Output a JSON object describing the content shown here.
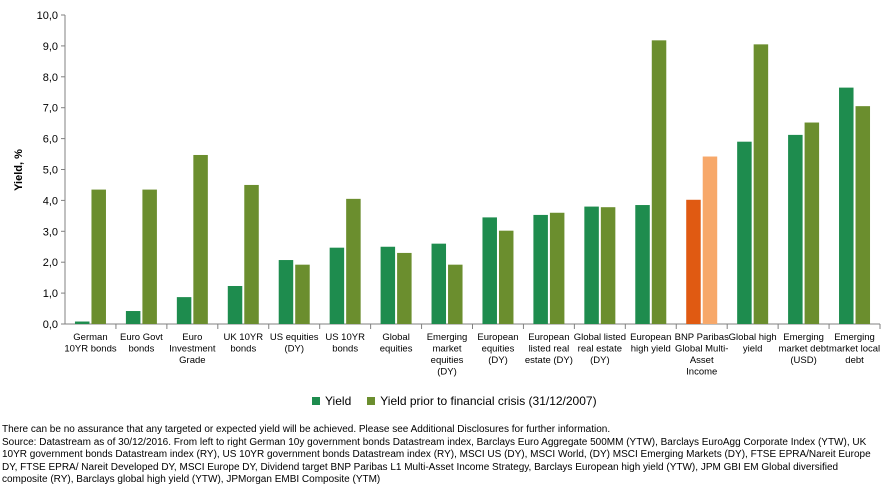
{
  "chart_data": {
    "type": "bar",
    "ylabel": "Yield, %",
    "ylim": [
      0,
      10
    ],
    "yticks": [
      "0,0",
      "1,0",
      "2,0",
      "3,0",
      "4,0",
      "5,0",
      "6,0",
      "7,0",
      "8,0",
      "9,0",
      "10,0"
    ],
    "categories": [
      [
        "German",
        "10YR bonds"
      ],
      [
        "Euro Govt",
        "bonds"
      ],
      [
        "Euro",
        "Investment",
        "Grade"
      ],
      [
        "UK 10YR",
        "bonds"
      ],
      [
        "US equities",
        "(DY)"
      ],
      [
        "US 10YR",
        "bonds"
      ],
      [
        "Global",
        "equities"
      ],
      [
        "Emerging",
        "market",
        "equities",
        "(DY)"
      ],
      [
        "European",
        "equities",
        "(DY)"
      ],
      [
        "European",
        "listed real",
        "estate (DY)"
      ],
      [
        "Global listed",
        "real estate",
        "(DY)"
      ],
      [
        "European",
        "high yield"
      ],
      [
        "BNP Paribas",
        "Global Multi-",
        "Asset",
        "Income"
      ],
      [
        "Global high",
        "yield"
      ],
      [
        "Emerging",
        "market debt",
        "(USD)"
      ],
      [
        "Emerging",
        "market local",
        "debt"
      ]
    ],
    "series": [
      {
        "name": "Yield",
        "color": "#1E8C4E",
        "values": [
          0.08,
          0.42,
          0.87,
          1.23,
          2.07,
          2.47,
          2.5,
          2.6,
          3.45,
          3.53,
          3.8,
          3.85,
          4.02,
          5.9,
          6.12,
          7.65
        ]
      },
      {
        "name": "Yield prior to financial crisis (31/12/2007)",
        "color": "#6B8E2E",
        "values": [
          4.35,
          4.35,
          5.47,
          4.5,
          1.92,
          4.05,
          2.3,
          1.92,
          3.02,
          3.6,
          3.78,
          9.18,
          5.42,
          9.05,
          6.52,
          7.05
        ]
      }
    ],
    "highlight": {
      "category_index": 12,
      "colors": [
        "#E05A12",
        "#F7A86A"
      ]
    },
    "legend_position": "bottom",
    "grid": false
  },
  "notes": {
    "line1": "There can be no assurance that any targeted or expected yield will be achieved. Please see Additional Disclosures for further information.",
    "line2": "Source: Datastream as of 30/12/2016. From left to right German 10y government bonds Datastream index, Barclays Euro Aggregate 500MM (YTW), Barclays EuroAgg Corporate Index (YTW), UK 10YR government bonds Datastream index (RY), US 10YR government bonds Datastream index (RY), MSCI US (DY), MSCI World, (DY) MSCI Emerging Markets (DY), FTSE EPRA/Nareit Europe DY, FTSE EPRA/ Nareit Developed DY, MSCI Europe DY, Dividend target BNP Paribas L1 Multi-Asset Income Strategy, Barclays European high yield (YTW), JPM GBI EM Global diversified composite (RY), Barclays global high yield (YTW), JPMorgan EMBI Composite (YTM)"
  }
}
